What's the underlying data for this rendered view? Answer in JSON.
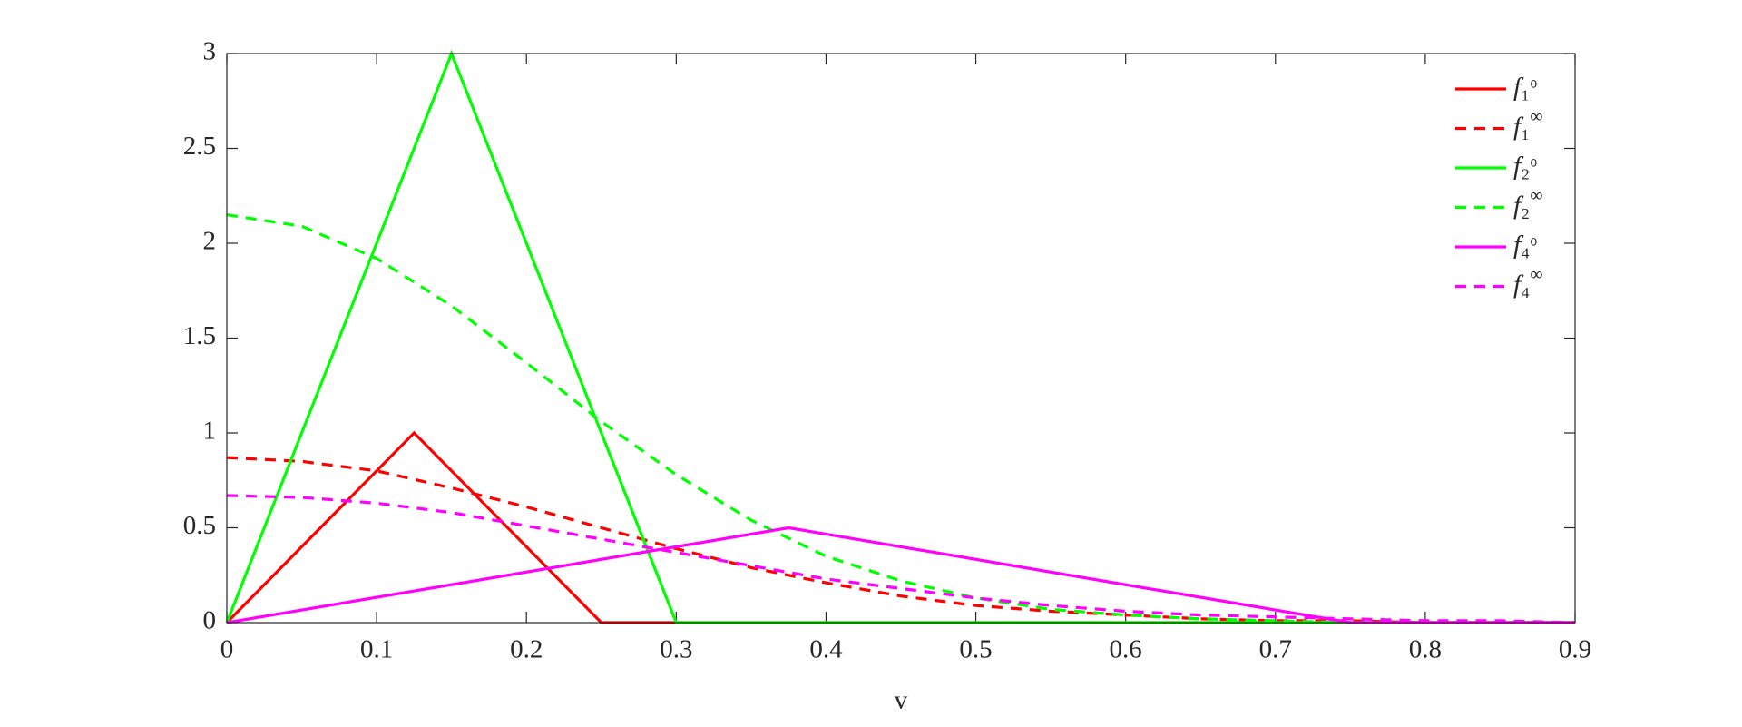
{
  "chart_data": {
    "type": "line",
    "x_label": "v",
    "xlim": [
      0,
      0.9
    ],
    "xticks": [
      0,
      0.1,
      0.2,
      0.3,
      0.4,
      0.5,
      0.6,
      0.7,
      0.8,
      0.9
    ],
    "ylim": [
      0,
      3
    ],
    "yticks": [
      0,
      0.5,
      1,
      1.5,
      2,
      2.5,
      3
    ],
    "legend": "upper-right",
    "grid": false,
    "series": [
      {
        "name": "f₁⁰",
        "color": "#ff0000",
        "dash": false,
        "x": [
          0,
          0.125,
          0.25,
          0.9
        ],
        "values": [
          0,
          1,
          0,
          0
        ]
      },
      {
        "name": "f₁∞",
        "color": "#ff0000",
        "dash": true,
        "x": [
          0,
          0.05,
          0.1,
          0.15,
          0.2,
          0.25,
          0.3,
          0.35,
          0.4,
          0.45,
          0.5,
          0.55,
          0.6,
          0.65,
          0.7,
          0.75,
          0.8,
          0.85,
          0.9
        ],
        "values": [
          0.87,
          0.85,
          0.8,
          0.71,
          0.61,
          0.5,
          0.39,
          0.29,
          0.21,
          0.14,
          0.09,
          0.06,
          0.04,
          0.02,
          0.01,
          0.01,
          0,
          0,
          0
        ]
      },
      {
        "name": "f₂⁰",
        "color": "#00ff00",
        "dash": false,
        "x": [
          0,
          0.15,
          0.3,
          0.9
        ],
        "values": [
          0,
          3,
          0,
          0
        ]
      },
      {
        "name": "f₂∞",
        "color": "#00ff00",
        "dash": true,
        "x": [
          0,
          0.05,
          0.1,
          0.15,
          0.2,
          0.25,
          0.3,
          0.35,
          0.4,
          0.45,
          0.5,
          0.55,
          0.6,
          0.65,
          0.7,
          0.75,
          0.8,
          0.85,
          0.9
        ],
        "values": [
          2.15,
          2.09,
          1.92,
          1.67,
          1.37,
          1.06,
          0.78,
          0.54,
          0.35,
          0.22,
          0.13,
          0.07,
          0.04,
          0.02,
          0.01,
          0,
          0,
          0,
          0
        ]
      },
      {
        "name": "f₄⁰",
        "color": "#ff00ff",
        "dash": false,
        "x": [
          0,
          0.375,
          0.75,
          0.9
        ],
        "values": [
          0,
          0.5,
          0,
          0
        ]
      },
      {
        "name": "f₄∞",
        "color": "#ff00ff",
        "dash": true,
        "x": [
          0,
          0.05,
          0.1,
          0.15,
          0.2,
          0.25,
          0.3,
          0.35,
          0.4,
          0.45,
          0.5,
          0.55,
          0.6,
          0.65,
          0.7,
          0.75,
          0.8,
          0.85,
          0.9
        ],
        "values": [
          0.67,
          0.66,
          0.63,
          0.58,
          0.51,
          0.44,
          0.37,
          0.3,
          0.23,
          0.18,
          0.13,
          0.09,
          0.06,
          0.04,
          0.03,
          0.02,
          0.01,
          0.01,
          0
        ]
      }
    ]
  }
}
